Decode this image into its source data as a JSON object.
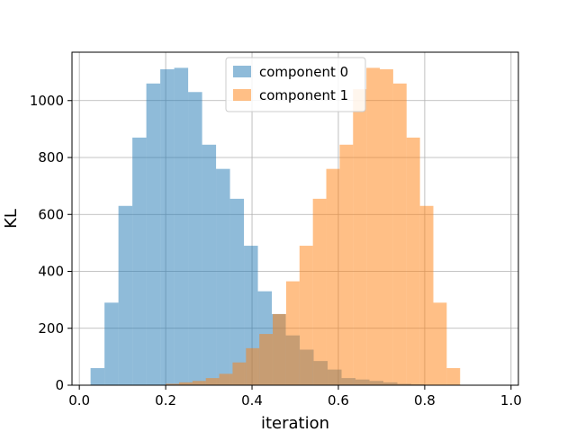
{
  "chart_data": {
    "type": "histogram",
    "xlabel": "iteration",
    "ylabel": "KL",
    "xlim": [
      -0.0,
      1.0
    ],
    "ylim": [
      0,
      1170
    ],
    "xticks": [
      0.0,
      0.2,
      0.4,
      0.6,
      0.8,
      1.0
    ],
    "xtick_labels": [
      "0.0",
      "0.2",
      "0.4",
      "0.6",
      "0.8",
      "1.0"
    ],
    "yticks": [
      0,
      200,
      400,
      600,
      800,
      1000
    ],
    "ytick_labels": [
      "0",
      "200",
      "400",
      "600",
      "800",
      "1000"
    ],
    "grid": true,
    "legend_position": "top-center",
    "series": [
      {
        "name": "component 0",
        "color": "#1f77b4",
        "opacity": 0.5,
        "bin_start": 0.026,
        "bin_width": 0.0323,
        "counts": [
          60,
          290,
          630,
          870,
          1060,
          1110,
          1115,
          1030,
          845,
          760,
          655,
          490,
          330,
          250,
          175,
          125,
          85,
          55,
          25,
          20,
          15,
          10,
          5,
          3
        ]
      },
      {
        "name": "component 1",
        "color": "#ff7f0e",
        "opacity": 0.5,
        "bin_start": 0.2,
        "bin_width": 0.031,
        "counts": [
          5,
          10,
          15,
          25,
          40,
          80,
          130,
          180,
          250,
          365,
          490,
          655,
          760,
          845,
          1040,
          1115,
          1110,
          1060,
          870,
          630,
          290,
          60
        ]
      }
    ]
  }
}
